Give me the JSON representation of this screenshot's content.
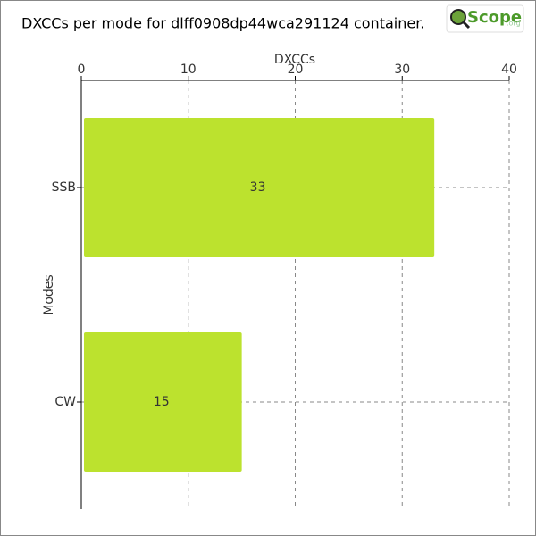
{
  "chart_data": {
    "type": "barh",
    "title": "DXCCs per mode for dlff0908dp44wca291124 container.",
    "xlabel": "DXCCs",
    "ylabel": "Modes",
    "categories": [
      "SSB",
      "CW"
    ],
    "values": [
      33,
      15
    ],
    "color": "#bce22e",
    "xlim": [
      0,
      40
    ],
    "xticks": [
      0,
      10,
      20,
      30,
      40
    ],
    "grid": true
  },
  "logo": {
    "name": "Scope",
    "suffix": ".org"
  }
}
